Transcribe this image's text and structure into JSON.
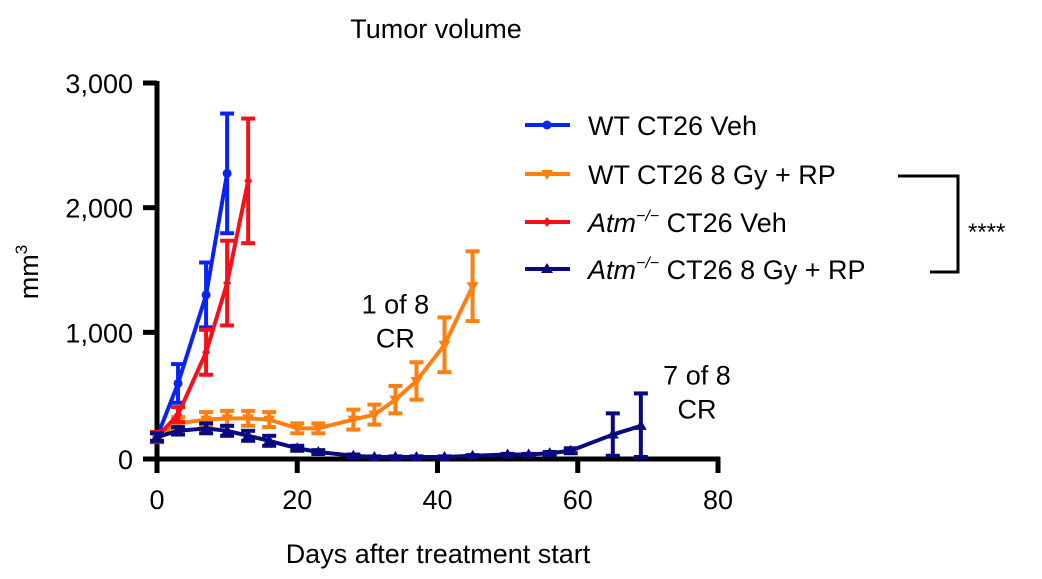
{
  "chart_data": {
    "type": "line",
    "title": "Tumor volume",
    "xlabel": "Days after treatment start",
    "ylabel": "mm3",
    "xlim": [
      0,
      80
    ],
    "ylim": [
      0,
      3000
    ],
    "xticks": [
      0,
      20,
      40,
      60,
      80
    ],
    "xtick_labels": [
      "0",
      "20",
      "40",
      "60",
      "80"
    ],
    "yticks": [
      0,
      1000,
      2000,
      3000
    ],
    "ytick_labels": [
      "0",
      "1,000",
      "2,000",
      "3,000"
    ],
    "grid": false,
    "legend_position": "top-right",
    "series": [
      {
        "name": "WT CT26 Veh",
        "name_prefix": "",
        "name_rest": "WT CT26 Veh",
        "color": "#0a22f5",
        "marker": "circle",
        "x": [
          0,
          3,
          7,
          10
        ],
        "y": [
          160,
          590,
          1300,
          2275
        ],
        "err": [
          40,
          155,
          260,
          480
        ]
      },
      {
        "name": "WT CT26 8 Gy + RP",
        "name_prefix": "",
        "name_rest": "WT CT26 8 Gy + RP",
        "color": "#ff7f10",
        "marker": "triangle-down",
        "x": [
          0,
          3,
          7,
          10,
          13,
          16,
          20,
          23,
          28,
          31,
          34,
          37,
          41,
          45
        ],
        "y": [
          160,
          270,
          300,
          310,
          310,
          300,
          230,
          230,
          300,
          340,
          460,
          610,
          900,
          1370
        ],
        "err": [
          40,
          50,
          60,
          60,
          60,
          60,
          40,
          40,
          80,
          80,
          110,
          150,
          220,
          280
        ]
      },
      {
        "name": "Atm-/- CT26 Veh",
        "name_prefix": "Atm",
        "name_sup": "−/−",
        "name_rest": " CT26 Veh",
        "color": "#f5101a",
        "marker": "diamond",
        "x": [
          0,
          3,
          7,
          10,
          13
        ],
        "y": [
          160,
          340,
          840,
          1395,
          2215
        ],
        "err": [
          40,
          60,
          180,
          340,
          500
        ]
      },
      {
        "name": "Atm-/- CT26 8 Gy + RP",
        "name_prefix": "Atm",
        "name_sup": "−/−",
        "name_rest": " CT26 8 Gy + RP",
        "color": "#0a0a80",
        "marker": "triangle-up",
        "x": [
          0,
          3,
          7,
          10,
          13,
          16,
          20,
          23,
          28,
          31,
          34,
          37,
          41,
          45,
          50,
          53,
          56,
          59,
          65,
          69
        ],
        "y": [
          160,
          210,
          230,
          210,
          170,
          130,
          70,
          40,
          10,
          0,
          0,
          0,
          0,
          10,
          20,
          20,
          30,
          50,
          180,
          250
        ],
        "err": [
          30,
          30,
          40,
          40,
          40,
          40,
          20,
          15,
          10,
          5,
          5,
          5,
          5,
          5,
          5,
          5,
          10,
          20,
          170,
          260
        ]
      }
    ],
    "annotations": [
      {
        "text_lines": [
          "1 of 8",
          "CR"
        ],
        "x": 34,
        "y": 1150
      },
      {
        "text_lines": [
          "7 of 8",
          "CR"
        ],
        "x": 77,
        "y": 580
      }
    ],
    "significance": "****"
  }
}
